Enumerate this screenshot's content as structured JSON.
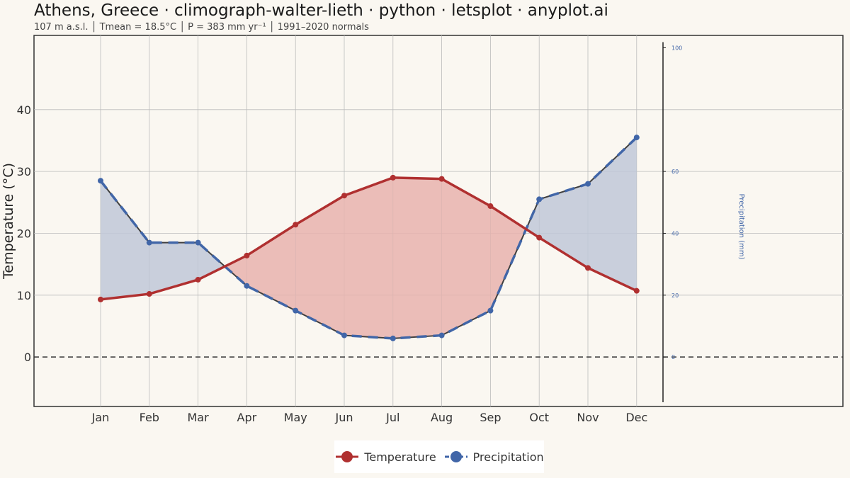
{
  "title": "Athens, Greece · climograph-walter-lieth · python · letsplot · anyplot.ai",
  "subtitle": "107 m a.s.l.  │  Tmean = 18.5°C  │  P = 383 mm yr⁻¹  │   1991–2020 normals",
  "colors": {
    "temperature": "#b03030",
    "precipitation": "#4166a8",
    "arid_fill": "#e8b3ae",
    "humid_fill": "#bfc8d8",
    "outline": "#3f3f3f",
    "background": "#faf7f1"
  },
  "chart_data": {
    "type": "line",
    "categories": [
      "Jan",
      "Feb",
      "Mar",
      "Apr",
      "May",
      "Jun",
      "Jul",
      "Aug",
      "Sep",
      "Oct",
      "Nov",
      "Dec"
    ],
    "ylabel": "Temperature (°C)",
    "ylabel_right": "Precipitation (mm)",
    "ylim": [
      -8,
      52
    ],
    "yticks": [
      0,
      10,
      20,
      30,
      40
    ],
    "ylim_right": [
      -16,
      104
    ],
    "yticks_right": [
      0,
      20,
      40,
      60,
      100
    ],
    "grid": true,
    "zero_line": "dashed",
    "legend_position": "bottom",
    "series": [
      {
        "name": "Temperature",
        "unit": "°C",
        "values": [
          9.3,
          10.2,
          12.5,
          16.4,
          21.4,
          26.1,
          29.0,
          28.8,
          24.4,
          19.3,
          14.4,
          10.7
        ]
      },
      {
        "name": "Precipitation",
        "unit": "mm",
        "values": [
          57,
          37,
          37,
          23,
          15,
          7,
          6,
          7,
          15,
          51,
          56,
          71
        ]
      }
    ]
  }
}
